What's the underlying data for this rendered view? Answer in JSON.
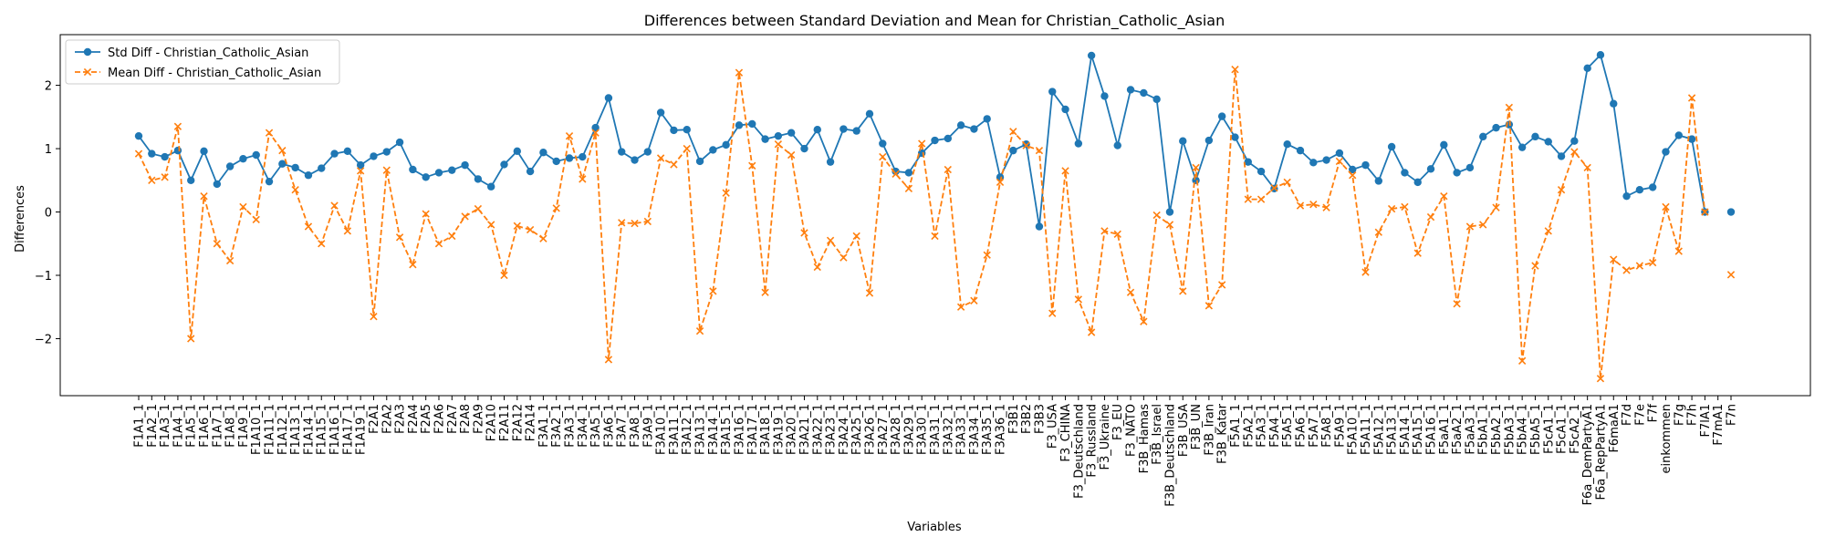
{
  "chart_data": {
    "type": "line",
    "title": "Differences between Standard Deviation and Mean for Christian_Catholic_Asian",
    "xlabel": "Variables",
    "ylabel": "Differences",
    "ylim": [
      -2.9,
      2.8
    ],
    "yticks": [
      -2,
      -1,
      0,
      1,
      2
    ],
    "grid": false,
    "legend_position": "upper-left",
    "categories": [
      "F1A1_1",
      "F1A2_1",
      "F1A3_1",
      "F1A4_1",
      "F1A5_1",
      "F1A6_1",
      "F1A7_1",
      "F1A8_1",
      "F1A9_1",
      "F1A10_1",
      "F1A11_1",
      "F1A12_1",
      "F1A13_1",
      "F1A14_1",
      "F1A15_1",
      "F1A16_1",
      "F1A17_1",
      "F1A19_1",
      "F2A1",
      "F2A2",
      "F2A3",
      "F2A4",
      "F2A5",
      "F2A6",
      "F2A7",
      "F2A8",
      "F2A9",
      "F2A10",
      "F2A11",
      "F2A12",
      "F2A14",
      "F3A1_1",
      "F3A2_1",
      "F3A3_1",
      "F3A4_1",
      "F3A5_1",
      "F3A6_1",
      "F3A7_1",
      "F3A8_1",
      "F3A9_1",
      "F3A10_1",
      "F3A11_1",
      "F3A12_1",
      "F3A13_1",
      "F3A14_1",
      "F3A15_1",
      "F3A16_1",
      "F3A17_1",
      "F3A18_1",
      "F3A19_1",
      "F3A20_1",
      "F3A21_1",
      "F3A22_1",
      "F3A23_1",
      "F3A24_1",
      "F3A25_1",
      "F3A26_1",
      "F3A27_1",
      "F3A28_1",
      "F3A29_1",
      "F3A30_1",
      "F3A31_1",
      "F3A32_1",
      "F3A33_1",
      "F3A34_1",
      "F3A35_1",
      "F3A36_1",
      "F3B1",
      "F3B2",
      "F3B3",
      "F3_USA",
      "F3_CHINA",
      "F3_Deutschland",
      "F3_Russland",
      "F3_Ukraine",
      "F3_EU",
      "F3_NATO",
      "F3B_Hamas",
      "F3B_Israel",
      "F3B_Deutschland",
      "F3B_USA",
      "F3B_UN",
      "F3B_Iran",
      "F3B_Katar",
      "F5A1_1",
      "F5A2_1",
      "F5A3_1",
      "F5A4_1",
      "F5A5_1",
      "F5A6_1",
      "F5A7_1",
      "F5A8_1",
      "F5A9_1",
      "F5A10_1",
      "F5A11_1",
      "F5A12_1",
      "F5A13_1",
      "F5A14_1",
      "F5A15_1",
      "F5A16_1",
      "F5aA1_1",
      "F5aA2_1",
      "F5aA3_1",
      "F5bA1_1",
      "F5bA2_1",
      "F5bA3_1",
      "F5bA4_1",
      "F5bA5_1",
      "F5cA1_1",
      "F5cA1_1",
      "F5cA2_1",
      "F6a_DemPartyA1",
      "F6a_RepPartyA1",
      "F6maA1",
      "F7d",
      "F7e",
      "F7f",
      "einkommen",
      "F7g",
      "F7h",
      "F7lA1",
      "F7mA1",
      "F7n"
    ],
    "series": [
      {
        "name": "Std Diff - Christian_Catholic_Asian",
        "color": "#1f77b4",
        "marker": "circle",
        "linestyle": "solid",
        "values": [
          1.2,
          0.92,
          0.87,
          0.97,
          0.5,
          0.96,
          0.44,
          0.72,
          0.84,
          0.9,
          0.48,
          0.76,
          0.7,
          0.58,
          0.69,
          0.92,
          0.96,
          0.74,
          0.88,
          0.95,
          1.1,
          0.67,
          0.55,
          0.62,
          0.66,
          0.74,
          0.52,
          0.4,
          0.75,
          0.96,
          0.64,
          0.94,
          0.8,
          0.85,
          0.87,
          1.33,
          1.8,
          0.95,
          0.82,
          0.95,
          1.57,
          1.29,
          1.3,
          0.8,
          0.98,
          1.06,
          1.37,
          1.39,
          1.15,
          1.2,
          1.25,
          1.0,
          1.3,
          0.79,
          1.31,
          1.28,
          1.55,
          1.08,
          0.64,
          0.62,
          0.93,
          1.13,
          1.16,
          1.37,
          1.31,
          1.47,
          0.55,
          0.97,
          1.07,
          -0.23,
          1.9,
          1.62,
          1.08,
          2.47,
          1.83,
          1.05,
          1.93,
          1.88,
          1.78,
          0.0,
          1.12,
          0.5,
          1.13,
          1.51,
          1.18,
          0.79,
          0.64,
          0.37,
          1.07,
          0.97,
          0.78,
          0.82,
          0.93,
          0.67,
          0.74,
          0.49,
          1.03,
          0.62,
          0.47,
          0.68,
          1.06,
          0.62,
          0.7,
          1.19,
          1.33,
          1.38,
          1.02,
          1.19,
          1.11,
          0.88,
          1.12,
          2.27,
          2.48,
          1.71,
          0.25,
          0.35,
          0.39,
          0.95,
          1.21,
          1.15,
          0.0,
          null,
          0.0
        ]
      },
      {
        "name": "Mean Diff - Christian_Catholic_Asian",
        "color": "#ff7f0e",
        "marker": "x",
        "linestyle": "dashed",
        "values": [
          0.92,
          0.5,
          0.55,
          1.35,
          -2.0,
          0.25,
          -0.5,
          -0.77,
          0.08,
          -0.12,
          1.25,
          0.97,
          0.35,
          -0.23,
          -0.5,
          0.1,
          -0.3,
          0.65,
          -1.65,
          0.66,
          -0.4,
          -0.83,
          -0.03,
          -0.5,
          -0.38,
          -0.07,
          0.05,
          -0.2,
          -1.0,
          -0.22,
          -0.28,
          -0.42,
          0.06,
          1.2,
          0.52,
          1.25,
          -2.33,
          -0.17,
          -0.18,
          -0.15,
          0.85,
          0.75,
          1.0,
          -1.88,
          -1.25,
          0.3,
          2.2,
          0.73,
          -1.27,
          1.07,
          0.9,
          -0.33,
          -0.87,
          -0.45,
          -0.72,
          -0.38,
          -1.28,
          0.87,
          0.6,
          0.37,
          1.08,
          -0.38,
          0.67,
          -1.5,
          -1.4,
          -0.68,
          0.47,
          1.27,
          1.05,
          0.97,
          -1.6,
          0.65,
          -1.38,
          -1.9,
          -0.3,
          -0.35,
          -1.27,
          -1.73,
          -0.05,
          -0.2,
          -1.25,
          0.7,
          -1.48,
          -1.15,
          2.25,
          0.2,
          0.2,
          0.38,
          0.47,
          0.1,
          0.12,
          0.07,
          0.8,
          0.58,
          -0.95,
          -0.32,
          0.05,
          0.08,
          -0.65,
          -0.08,
          0.25,
          -1.45,
          -0.23,
          -0.2,
          0.07,
          1.65,
          -2.35,
          -0.85,
          -0.3,
          0.35,
          0.95,
          0.7,
          -2.63,
          -0.75,
          -0.92,
          -0.85,
          -0.8,
          0.08,
          -0.62,
          1.8,
          0.0,
          null,
          -0.99
        ]
      }
    ]
  }
}
